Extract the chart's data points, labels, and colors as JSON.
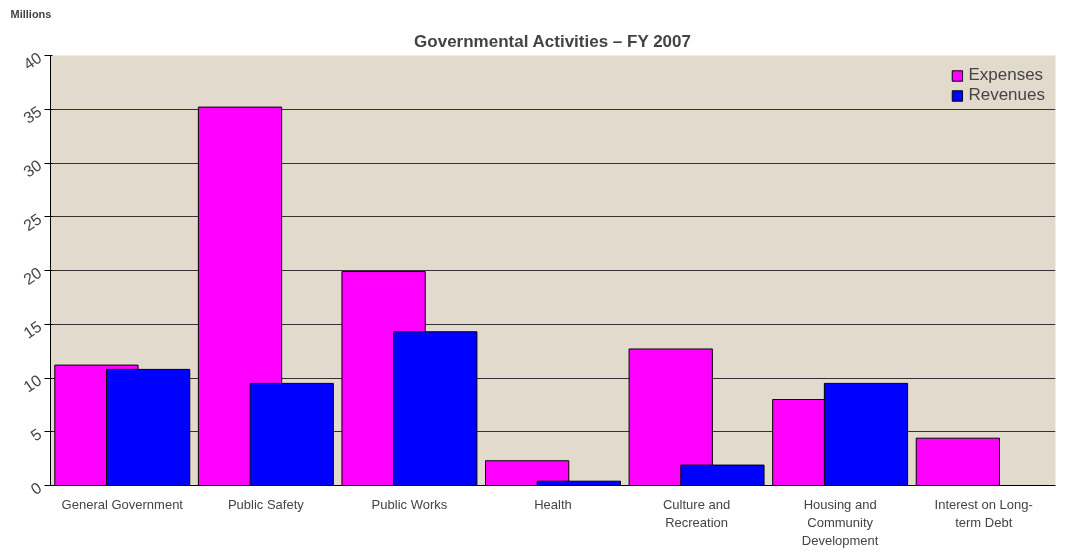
{
  "chart_data": {
    "type": "bar",
    "title": "Governmental Activities – FY 2007",
    "ylabel": "Millions",
    "categories": [
      "General Government",
      "Public Safety",
      "Public Works",
      "Health",
      "Culture and Recreation",
      "Housing and Community Development",
      "Interest on Long-term Debt"
    ],
    "series": [
      {
        "name": "Expenses",
        "color": "#ff00ff",
        "values": [
          11.2,
          35.2,
          19.9,
          2.3,
          12.7,
          8.0,
          4.4
        ]
      },
      {
        "name": "Revenues",
        "color": "#0000ff",
        "values": [
          10.8,
          9.5,
          14.3,
          0.4,
          1.9,
          9.5,
          null
        ]
      }
    ],
    "ylim": [
      0,
      40
    ],
    "yticks": [
      0,
      5,
      10,
      15,
      20,
      25,
      30,
      35,
      40
    ],
    "grid": "y",
    "legend": "top right"
  }
}
